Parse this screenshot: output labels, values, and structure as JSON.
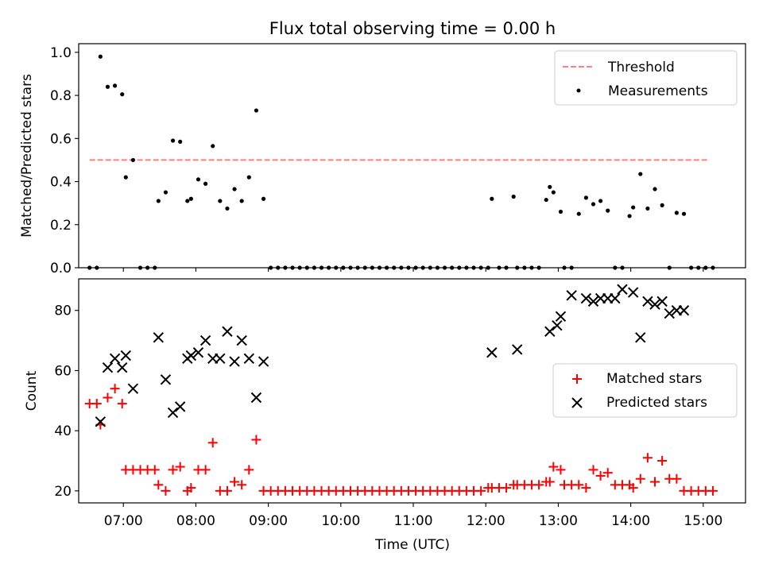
{
  "figure": {
    "title": "Flux total observing time = 0.00 h",
    "xlabel": "Time (UTC)",
    "x_tick_labels": [
      "07:00",
      "08:00",
      "09:00",
      "10:00",
      "11:00",
      "12:00",
      "13:00",
      "14:00",
      "15:00"
    ]
  },
  "chart_data": [
    {
      "type": "scatter",
      "title": "Flux total observing time = 0.00 h",
      "xlabel": "",
      "ylabel": "Matched/Predicted stars",
      "xlim": [
        "06:23",
        "15:35"
      ],
      "ylim": [
        0,
        1.04
      ],
      "yticks": [
        "0.0",
        "0.2",
        "0.4",
        "0.6",
        "0.8",
        "1.0"
      ],
      "legend_position": "top-right",
      "grid": false,
      "threshold": {
        "name": "Threshold",
        "value": 0.5,
        "x_from": "06:32",
        "x_to": "15:05",
        "color": "#ff7f7f",
        "style": "dashed"
      },
      "series": [
        {
          "name": "Measurements",
          "color": "#000000",
          "x": [
            "06:32",
            "06:38",
            "06:41",
            "06:47",
            "06:53",
            "06:59",
            "07:02",
            "07:08",
            "07:14",
            "07:20",
            "07:26",
            "07:29",
            "07:35",
            "07:41",
            "07:47",
            "07:53",
            "07:56",
            "08:02",
            "08:08",
            "08:14",
            "08:20",
            "08:26",
            "08:32",
            "08:38",
            "08:44",
            "08:50",
            "08:56",
            "09:02",
            "09:08",
            "09:14",
            "09:20",
            "09:26",
            "09:32",
            "09:38",
            "09:44",
            "09:50",
            "09:56",
            "10:02",
            "10:08",
            "10:14",
            "10:20",
            "10:26",
            "10:32",
            "10:38",
            "10:44",
            "10:50",
            "10:56",
            "11:02",
            "11:08",
            "11:14",
            "11:20",
            "11:26",
            "11:32",
            "11:38",
            "11:44",
            "11:50",
            "11:56",
            "12:02",
            "12:05",
            "12:11",
            "12:17",
            "12:23",
            "12:26",
            "12:32",
            "12:38",
            "12:44",
            "12:50",
            "12:53",
            "12:56",
            "13:02",
            "13:05",
            "13:11",
            "13:17",
            "13:23",
            "13:29",
            "13:35",
            "13:41",
            "13:47",
            "13:53",
            "13:59",
            "14:02",
            "14:08",
            "14:14",
            "14:20",
            "14:26",
            "14:32",
            "14:38",
            "14:44",
            "14:50",
            "14:56",
            "15:02",
            "15:08"
          ],
          "y": [
            0,
            0,
            0.98,
            0.84,
            0.845,
            0.805,
            0.42,
            0.5,
            0,
            0,
            0,
            0.31,
            0.35,
            0.59,
            0.585,
            0.31,
            0.32,
            0.41,
            0.39,
            0.565,
            0.31,
            0.275,
            0.365,
            0.31,
            0.42,
            0.73,
            0.32,
            0,
            0,
            0,
            0,
            0,
            0,
            0,
            0,
            0,
            0,
            0,
            0,
            0,
            0,
            0,
            0,
            0,
            0,
            0,
            0,
            0,
            0,
            0,
            0,
            0,
            0,
            0,
            0,
            0,
            0,
            0,
            0.32,
            0,
            0,
            0.33,
            0,
            0,
            0,
            0,
            0.315,
            0.375,
            0.35,
            0.26,
            0,
            0,
            0.25,
            0.325,
            0.295,
            0.31,
            0.265,
            0,
            0,
            0.24,
            0.28,
            0.435,
            0.275,
            0.365,
            0.29,
            0,
            0.255,
            0.25,
            0,
            0,
            0,
            0
          ]
        }
      ]
    },
    {
      "type": "scatter",
      "title": "",
      "xlabel": "Time (UTC)",
      "ylabel": "Count",
      "xlim": [
        "06:23",
        "15:35"
      ],
      "ylim": [
        16,
        90.5
      ],
      "yticks": [
        "20",
        "40",
        "60",
        "80"
      ],
      "legend_position": "center-right",
      "grid": false,
      "series": [
        {
          "name": "Matched stars",
          "color": "#ff0000",
          "marker": "+",
          "x": [
            "06:32",
            "06:38",
            "06:41",
            "06:47",
            "06:53",
            "06:59",
            "07:02",
            "07:08",
            "07:14",
            "07:20",
            "07:26",
            "07:29",
            "07:35",
            "07:41",
            "07:47",
            "07:53",
            "07:56",
            "08:02",
            "08:08",
            "08:14",
            "08:20",
            "08:26",
            "08:32",
            "08:38",
            "08:44",
            "08:50",
            "08:56",
            "09:02",
            "09:08",
            "09:14",
            "09:20",
            "09:26",
            "09:32",
            "09:38",
            "09:44",
            "09:50",
            "09:56",
            "10:02",
            "10:08",
            "10:14",
            "10:20",
            "10:26",
            "10:32",
            "10:38",
            "10:44",
            "10:50",
            "10:56",
            "11:02",
            "11:08",
            "11:14",
            "11:20",
            "11:26",
            "11:32",
            "11:38",
            "11:44",
            "11:50",
            "11:56",
            "12:02",
            "12:05",
            "12:11",
            "12:17",
            "12:23",
            "12:26",
            "12:32",
            "12:38",
            "12:44",
            "12:50",
            "12:53",
            "12:56",
            "13:02",
            "13:05",
            "13:11",
            "13:17",
            "13:23",
            "13:29",
            "13:35",
            "13:41",
            "13:47",
            "13:53",
            "13:59",
            "14:02",
            "14:08",
            "14:14",
            "14:20",
            "14:26",
            "14:32",
            "14:38",
            "14:44",
            "14:50",
            "14:56",
            "15:02",
            "15:08"
          ],
          "y": [
            49,
            49,
            42,
            51,
            54,
            49,
            27,
            27,
            27,
            27,
            27,
            22,
            20,
            27,
            28,
            20,
            21,
            27,
            27,
            36,
            20,
            20,
            23,
            22,
            27,
            37,
            20,
            20,
            20,
            20,
            20,
            20,
            20,
            20,
            20,
            20,
            20,
            20,
            20,
            20,
            20,
            20,
            20,
            20,
            20,
            20,
            20,
            20,
            20,
            20,
            20,
            20,
            20,
            20,
            20,
            20,
            20,
            21,
            21,
            21,
            21,
            22,
            22,
            22,
            22,
            22,
            23,
            23,
            28,
            27,
            22,
            22,
            22,
            21,
            27,
            25,
            26,
            22,
            22,
            22,
            21,
            24,
            31,
            23,
            30,
            24,
            24,
            20,
            20,
            20,
            20,
            20
          ]
        },
        {
          "name": "Predicted stars",
          "color": "#000000",
          "marker": "x",
          "x": [
            "06:41",
            "06:47",
            "06:53",
            "06:59",
            "07:02",
            "07:08",
            "07:29",
            "07:35",
            "07:41",
            "07:47",
            "07:53",
            "07:56",
            "08:02",
            "08:08",
            "08:14",
            "08:20",
            "08:26",
            "08:32",
            "08:38",
            "08:44",
            "08:50",
            "08:56",
            "12:05",
            "12:26",
            "12:53",
            "12:59",
            "13:02",
            "13:11",
            "13:23",
            "13:29",
            "13:35",
            "13:41",
            "13:47",
            "13:53",
            "14:02",
            "14:08",
            "14:14",
            "14:20",
            "14:26",
            "14:32",
            "14:38",
            "14:44"
          ],
          "y": [
            43,
            61,
            64,
            61,
            65,
            54,
            71,
            57,
            46,
            48,
            64,
            65,
            66,
            70,
            64,
            64,
            73,
            63,
            70,
            64,
            51,
            63,
            66,
            67,
            73,
            75,
            78,
            85,
            84,
            83,
            84,
            84,
            84,
            87,
            86,
            71,
            83,
            82,
            83,
            79,
            80,
            80
          ]
        }
      ]
    }
  ]
}
